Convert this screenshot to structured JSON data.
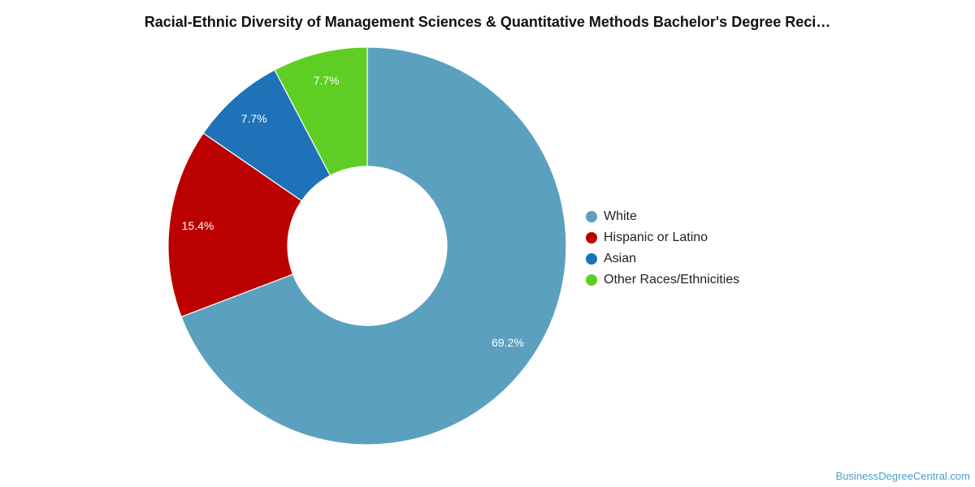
{
  "chart_data": {
    "type": "pie",
    "title": "Racial-Ethnic Diversity of Management Sciences & Quantitative Methods Bachelor's Degree Reci…",
    "donut": true,
    "legend_position": "right",
    "slices": [
      {
        "label": "White",
        "value": 69.2,
        "value_label": "69.2%",
        "color": "#5ba1bf"
      },
      {
        "label": "Hispanic or Latino",
        "value": 15.4,
        "value_label": "15.4%",
        "color": "#bb0000"
      },
      {
        "label": "Asian",
        "value": 7.7,
        "value_label": "7.7%",
        "color": "#1f72b8"
      },
      {
        "label": "Other Races/Ethnicities",
        "value": 7.7,
        "value_label": "7.7%",
        "color": "#5fce24"
      }
    ]
  },
  "footer": {
    "source": "BusinessDegreeCentral.com"
  }
}
